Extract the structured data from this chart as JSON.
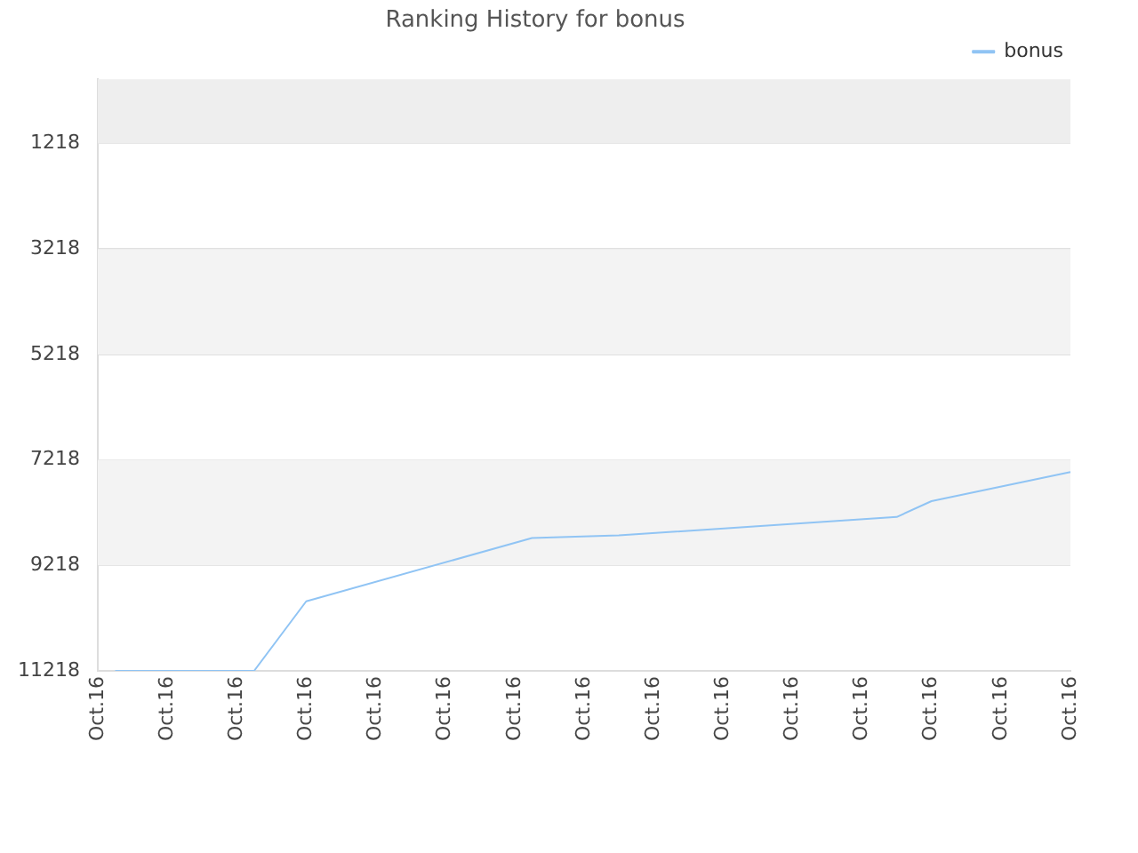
{
  "chart_data": {
    "type": "line",
    "title": "Ranking History for bonus",
    "categories": [
      "Oct.16",
      null,
      null,
      null,
      "Oct.16",
      null,
      null,
      null,
      "Oct.16",
      null,
      null,
      null,
      "Oct.16",
      null,
      null,
      null,
      "Oct.16",
      null,
      null,
      null,
      "Oct.16",
      null,
      null,
      null,
      "Oct.16",
      null,
      null,
      null,
      "Oct.16",
      null,
      null,
      null,
      "Oct.16",
      null,
      null,
      null,
      "Oct.16",
      null,
      null,
      null,
      "Oct.16",
      null,
      null,
      null,
      "Oct.16",
      null,
      null,
      null,
      "Oct.16",
      null,
      null,
      null,
      "Oct.16",
      null,
      null,
      null,
      "Oct.16"
    ],
    "series": [
      {
        "name": "bonus",
        "color": "#90c4f4",
        "values": [
          null,
          11218,
          null,
          null,
          null,
          null,
          null,
          null,
          null,
          11218,
          null,
          null,
          9900,
          null,
          null,
          null,
          null,
          null,
          null,
          null,
          null,
          null,
          null,
          null,
          null,
          8700,
          null,
          null,
          null,
          null,
          8650,
          null,
          null,
          null,
          null,
          null,
          null,
          null,
          null,
          null,
          null,
          null,
          null,
          null,
          null,
          null,
          8300,
          null,
          8000,
          null,
          null,
          null,
          null,
          null,
          null,
          null,
          7450
        ]
      }
    ],
    "ylim": [
      11218,
      0
    ],
    "yticks": [
      1218,
      3218,
      5218,
      7218,
      9218,
      11218
    ],
    "bands": [
      {
        "axis": "y",
        "from": 0,
        "to": 1218,
        "color": "#eeeeee"
      },
      {
        "axis": "y",
        "from": 3218,
        "to": 5218,
        "color": "#f3f3f3"
      },
      {
        "axis": "y",
        "from": 7218,
        "to": 9218,
        "color": "#f3f3f3"
      }
    ],
    "grid": "y",
    "legend": "top right",
    "marker": "none",
    "line_style": "solid"
  }
}
